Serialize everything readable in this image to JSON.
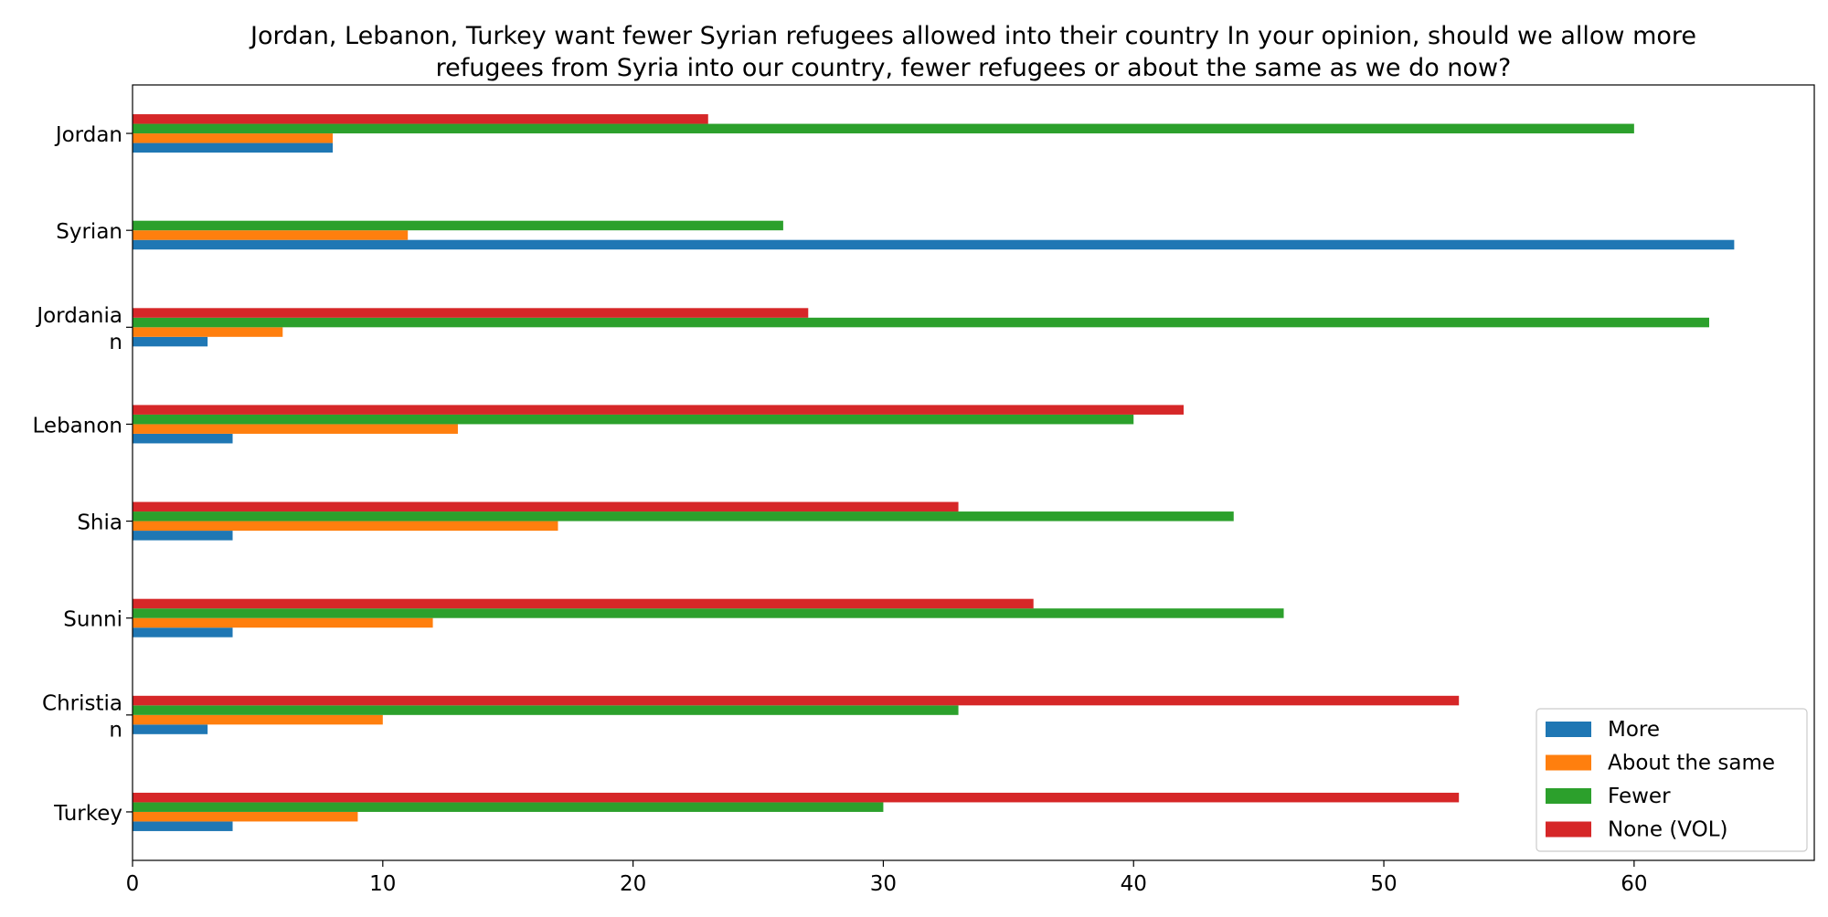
{
  "chart_data": {
    "type": "bar",
    "orientation": "horizontal",
    "title": "Jordan, Lebanon, Turkey want fewer Syrian refugees allowed into their country In your opinion, should we allow more refugees from Syria into our country, fewer refugees or about the same as we do now?",
    "title_lines": [
      "Jordan, Lebanon, Turkey want fewer Syrian refugees allowed into their country In your opinion, should we allow more",
      "refugees from Syria into our country, fewer refugees or about the same as we do now?"
    ],
    "categories": [
      "Jordan",
      "Syrian",
      "Jordanian",
      "Lebanon",
      "Shia",
      "Sunni",
      "Christian",
      "Turkey"
    ],
    "category_label_lines": [
      [
        "Jordan"
      ],
      [
        "Syrian"
      ],
      [
        "Jordania",
        "n"
      ],
      [
        "Lebanon"
      ],
      [
        "Shia"
      ],
      [
        "Sunni"
      ],
      [
        "Christia",
        "n"
      ],
      [
        "Turkey"
      ]
    ],
    "series": [
      {
        "name": "More",
        "color": "#1f77b4",
        "values": [
          8,
          64,
          3,
          4,
          4,
          4,
          3,
          4
        ]
      },
      {
        "name": "About the same",
        "color": "#ff7f0e",
        "values": [
          8,
          11,
          6,
          13,
          17,
          12,
          10,
          9
        ]
      },
      {
        "name": "Fewer",
        "color": "#2ca02c",
        "values": [
          60,
          26,
          63,
          40,
          44,
          46,
          33,
          30
        ]
      },
      {
        "name": "None (VOL)",
        "color": "#d62728",
        "values": [
          23,
          0,
          27,
          42,
          33,
          36,
          53,
          53
        ]
      }
    ],
    "xlabel": "",
    "ylabel": "",
    "xlim": [
      0,
      67.2
    ],
    "xticks": [
      0,
      10,
      20,
      30,
      40,
      50,
      60
    ],
    "grid": false,
    "legend_position": "lower-right"
  }
}
